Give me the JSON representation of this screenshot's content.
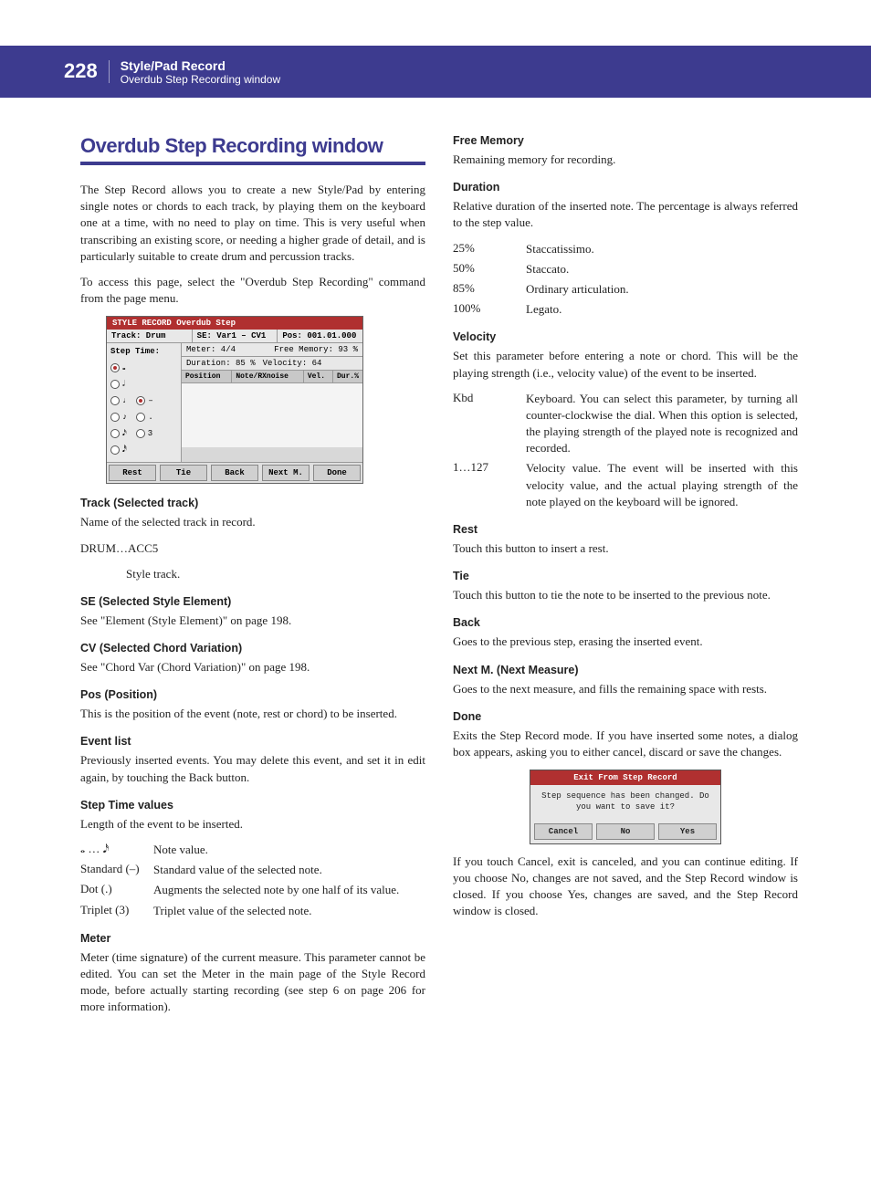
{
  "header": {
    "pageNumber": "228",
    "title": "Style/Pad Record",
    "subtitle": "Overdub Step Recording window"
  },
  "sectionTitle": "Overdub Step Recording window",
  "intro": {
    "p1": "The Step Record allows you to create a new Style/Pad by entering single notes or chords to each track, by playing them on the keyboard one at a time, with no need to play on time. This is very useful when transcribing an existing score, or needing a higher grade of detail, and is particularly suitable to create drum and percussion tracks.",
    "p2": "To access this page, select the \"Overdub Step Recording\" command from the page menu."
  },
  "uiWindow": {
    "title": "STYLE RECORD Overdub Step",
    "track": "Track: Drum",
    "se": "SE: Var1 – CV1",
    "pos": "Pos: 001.01.000",
    "stepTimeLabel": "Step Time:",
    "meter": "Meter:  4/4",
    "freeMem": "Free Memory: 93  %",
    "duration": "Duration:  85  %",
    "velocity": "Velocity:  64",
    "colPosition": "Position",
    "colNote": "Note/RXnoise",
    "colVel": "Vel.",
    "colDur": "Dur.%",
    "noteWhole": "𝅝",
    "noteHalf": "𝅗𝅥",
    "noteQuarter": "♩",
    "noteEighth": "♪",
    "noteSixteenth": "𝅘𝅥𝅯",
    "noteThirtySecond": "𝅘𝅥𝅰",
    "modDash": "–",
    "modDot": ".",
    "mod3": "3",
    "btnRest": "Rest",
    "btnTie": "Tie",
    "btnBack": "Back",
    "btnNextM": "Next M.",
    "btnDone": "Done"
  },
  "left": {
    "track": {
      "head": "Track (Selected track)",
      "body": "Name of the selected track in record.",
      "range": "DRUM…ACC5",
      "rangeDesc": "Style track."
    },
    "se": {
      "head": "SE (Selected Style Element)",
      "body": "See \"Element (Style Element)\" on page 198."
    },
    "cv": {
      "head": "CV (Selected Chord Variation)",
      "body": "See \"Chord Var (Chord Variation)\" on page 198."
    },
    "pos": {
      "head": "Pos (Position)",
      "body": "This is the position of the event (note, rest or chord) to be inserted."
    },
    "eventlist": {
      "head": "Event list",
      "body": "Previously inserted events. You may delete this event, and set it in edit again, by touching the Back button."
    },
    "steptime": {
      "head": "Step Time values",
      "body": "Length of the event to be inserted.",
      "rows": {
        "r1t": "𝅝 … 𝅘𝅥𝅯",
        "r1d": "Note value.",
        "r2t": "Standard (–)",
        "r2d": "Standard value of the selected note.",
        "r3t": "Dot (.)",
        "r3d": "Augments the selected note by one half of its value.",
        "r4t": "Triplet (3)",
        "r4d": "Triplet value of the selected note."
      }
    },
    "meter": {
      "head": "Meter",
      "body": "Meter (time signature) of the current measure. This parameter cannot be edited. You can set the Meter in the main page of the Style Record mode, before actually starting recording (see step 6 on page 206 for more information)."
    }
  },
  "right": {
    "freemem": {
      "head": "Free Memory",
      "body": "Remaining memory for recording."
    },
    "duration": {
      "head": "Duration",
      "body": "Relative duration of the inserted note. The percentage is always referred to the step value.",
      "rows": {
        "r1t": "25%",
        "r1d": "Staccatissimo.",
        "r2t": "50%",
        "r2d": "Staccato.",
        "r3t": "85%",
        "r3d": "Ordinary articulation.",
        "r4t": "100%",
        "r4d": "Legato."
      }
    },
    "velocity": {
      "head": "Velocity",
      "body": "Set this parameter before entering a note or chord. This will be the playing strength (i.e., velocity value) of the event to be inserted.",
      "rows": {
        "r1t": "Kbd",
        "r1d": "Keyboard. You can select this parameter, by turning all counter-clockwise the dial. When this option is selected, the playing strength of the played note is recognized and recorded.",
        "r2t": "1…127",
        "r2d": "Velocity value. The event will be inserted with this velocity value, and the actual playing strength of the note played on the keyboard will be ignored."
      }
    },
    "rest": {
      "head": "Rest",
      "body": "Touch this button to insert a rest."
    },
    "tie": {
      "head": "Tie",
      "body": "Touch this button to tie the note to be inserted to the previous note."
    },
    "back": {
      "head": "Back",
      "body": "Goes to the previous step, erasing the inserted event."
    },
    "nextm": {
      "head": "Next M. (Next Measure)",
      "body": "Goes to the next measure, and fills the remaining space with rests."
    },
    "done": {
      "head": "Done",
      "body": "Exits the Step Record mode. If you have inserted some notes, a dialog box appears, asking you to either cancel, discard or save the changes."
    },
    "dialog": {
      "title": "Exit From Step Record",
      "msg": "Step sequence has been changed. Do you want to save it?",
      "btnCancel": "Cancel",
      "btnNo": "No",
      "btnYes": "Yes"
    },
    "afterDialog": "If you touch Cancel, exit is canceled, and you can continue editing. If you choose No, changes are not saved, and the Step Record window is closed. If you choose Yes, changes are saved, and the Step Record window is closed."
  }
}
